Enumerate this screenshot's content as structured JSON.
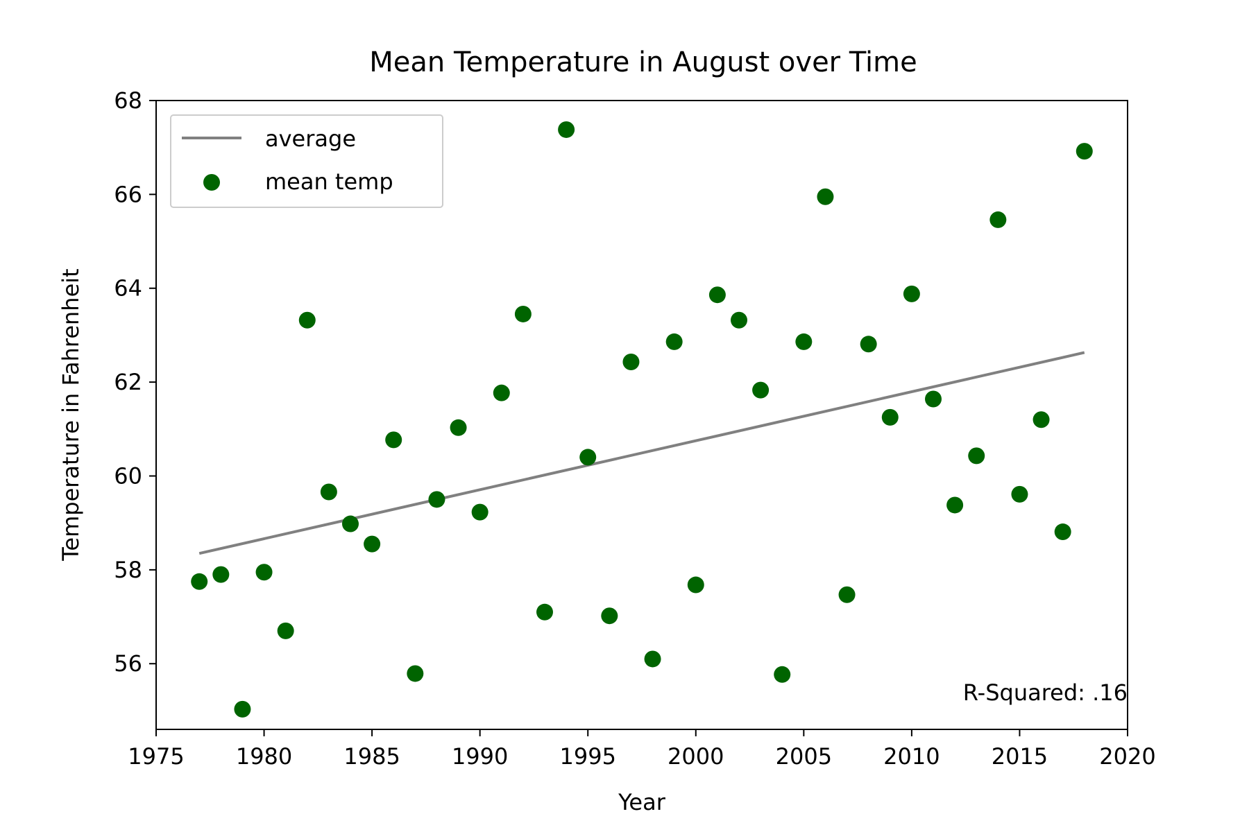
{
  "chart_data": {
    "type": "scatter",
    "title": "Mean Temperature in August over Time",
    "xlabel": "Year",
    "ylabel": "Temperature in Fahrenheit",
    "xlim": [
      1975,
      2020
    ],
    "ylim": [
      54.6,
      68
    ],
    "xticks": [
      1975,
      1980,
      1985,
      1990,
      1995,
      2000,
      2005,
      2010,
      2015,
      2020
    ],
    "yticks": [
      56,
      58,
      60,
      62,
      64,
      66,
      68
    ],
    "grid": false,
    "legend_position": "top-left",
    "annotation": "R-Squared: .16",
    "series": [
      {
        "name": "mean temp",
        "kind": "scatter",
        "color": "#006400",
        "x": [
          1977,
          1978,
          1979,
          1980,
          1981,
          1982,
          1983,
          1984,
          1985,
          1986,
          1987,
          1988,
          1989,
          1990,
          1991,
          1992,
          1993,
          1994,
          1995,
          1996,
          1997,
          1998,
          1999,
          2000,
          2001,
          2002,
          2003,
          2004,
          2005,
          2006,
          2007,
          2008,
          2009,
          2010,
          2011,
          2012,
          2013,
          2014,
          2015,
          2016,
          2017,
          2018
        ],
        "y": [
          57.75,
          57.9,
          55.03,
          57.95,
          56.7,
          63.32,
          59.66,
          58.98,
          58.55,
          60.77,
          55.79,
          59.5,
          61.03,
          59.23,
          61.77,
          63.45,
          57.1,
          67.38,
          60.4,
          57.02,
          62.43,
          56.1,
          62.86,
          57.68,
          63.86,
          63.32,
          61.83,
          55.77,
          62.86,
          65.95,
          57.47,
          62.81,
          61.25,
          63.88,
          61.64,
          59.38,
          60.43,
          65.46,
          59.61,
          61.2,
          58.81,
          66.92
        ]
      },
      {
        "name": "average",
        "kind": "line",
        "color": "#808080",
        "x": [
          1977,
          2018
        ],
        "y": [
          58.35,
          62.63
        ]
      }
    ]
  }
}
